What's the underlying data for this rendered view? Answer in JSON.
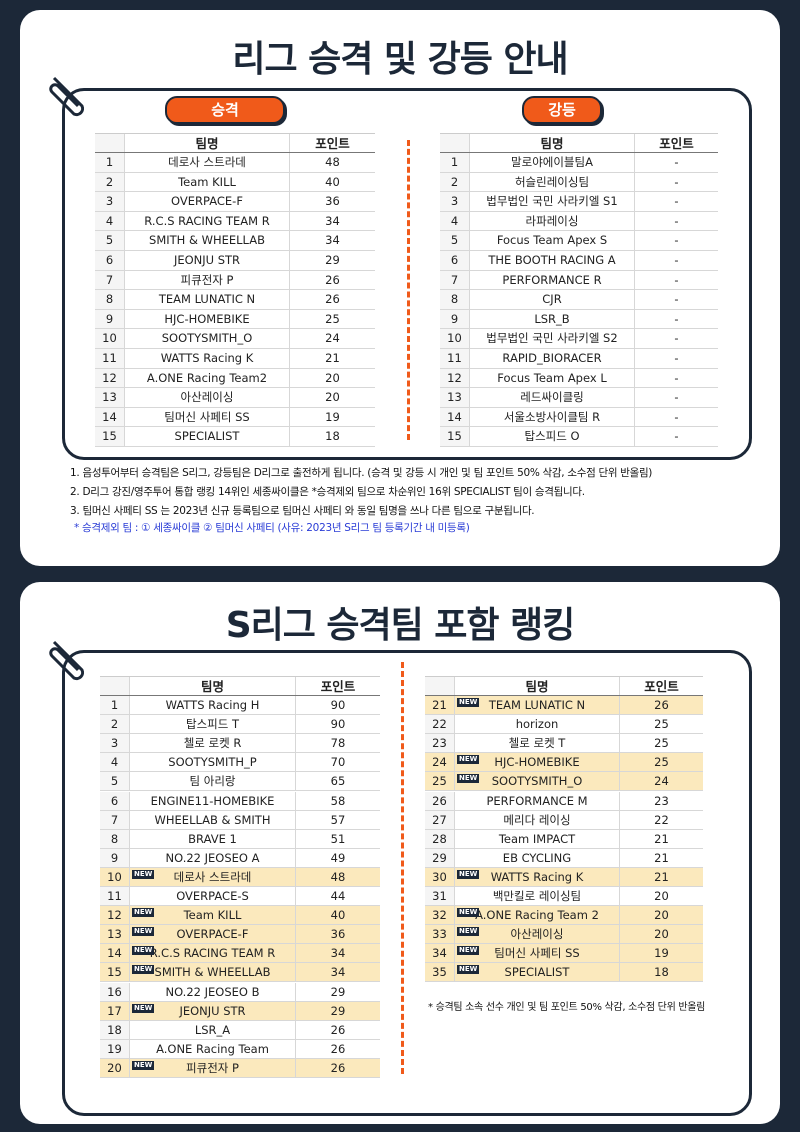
{
  "section1": {
    "title": "리그 승격 및 강등 안내",
    "promotion": {
      "label": "승격",
      "headers": [
        "팀명",
        "포인트"
      ],
      "rows": [
        {
          "rank": 1,
          "team": "데로사 스트라데",
          "points": 48
        },
        {
          "rank": 2,
          "team": "Team KILL",
          "points": 40
        },
        {
          "rank": 3,
          "team": "OVERPACE-F",
          "points": 36
        },
        {
          "rank": 4,
          "team": "R.C.S RACING TEAM R",
          "points": 34
        },
        {
          "rank": 5,
          "team": "SMITH & WHEELLAB",
          "points": 34
        },
        {
          "rank": 6,
          "team": "JEONJU STR",
          "points": 29
        },
        {
          "rank": 7,
          "team": "피큐전자 P",
          "points": 26
        },
        {
          "rank": 8,
          "team": "TEAM LUNATIC N",
          "points": 26
        },
        {
          "rank": 9,
          "team": "HJC-HOMEBIKE",
          "points": 25
        },
        {
          "rank": 10,
          "team": "SOOTYSMITH_O",
          "points": 24
        },
        {
          "rank": 11,
          "team": "WATTS Racing K",
          "points": 21
        },
        {
          "rank": 12,
          "team": "A.ONE Racing Team2",
          "points": 20
        },
        {
          "rank": 13,
          "team": "아산레이싱",
          "points": 20
        },
        {
          "rank": 14,
          "team": "팀머신 사페티 SS",
          "points": 19
        },
        {
          "rank": 15,
          "team": "SPECIALIST",
          "points": 18
        }
      ]
    },
    "relegation": {
      "label": "강등",
      "headers": [
        "팀명",
        "포인트"
      ],
      "rows": [
        {
          "rank": 1,
          "team": "말로야에이블팀A",
          "points": "-"
        },
        {
          "rank": 2,
          "team": "허슬린레이싱팀",
          "points": "-"
        },
        {
          "rank": 3,
          "team": "법무법인 국민 사라키엘 S1",
          "points": "-"
        },
        {
          "rank": 4,
          "team": "라파레이싱",
          "points": "-"
        },
        {
          "rank": 5,
          "team": "Focus Team Apex S",
          "points": "-"
        },
        {
          "rank": 6,
          "team": "THE BOOTH RACING A",
          "points": "-"
        },
        {
          "rank": 7,
          "team": "PERFORMANCE R",
          "points": "-"
        },
        {
          "rank": 8,
          "team": "CJR",
          "points": "-"
        },
        {
          "rank": 9,
          "team": "LSR_B",
          "points": "-"
        },
        {
          "rank": 10,
          "team": "법무법인 국민 사라키엘 S2",
          "points": "-"
        },
        {
          "rank": 11,
          "team": "RAPID_BIORACER",
          "points": "-"
        },
        {
          "rank": 12,
          "team": "Focus Team Apex L",
          "points": "-"
        },
        {
          "rank": 13,
          "team": "레드싸이클링",
          "points": "-"
        },
        {
          "rank": 14,
          "team": "서울소방사이클팀 R",
          "points": "-"
        },
        {
          "rank": 15,
          "team": "탑스피드 O",
          "points": "-"
        }
      ]
    },
    "notes": [
      "1. 음성투어부터 승격팀은 S리그, 강등팀은 D리그로 출전하게 됩니다. (승격 및 강등 시 개인 및 팀 포인트 50% 삭감, 소수점 단위 반올림)",
      "2. D리그 강진/영주투어 통합 랭킹 14위인 세종싸이클은 *승격제외 팀으로 차순위인 16위 SPECIALIST 팀이 승격됩니다.",
      "3. 팀머신 사페티 SS 는 2023년 신규 등록팀으로 팀머신 사페티 와 동일 팀명을 쓰나 다른 팀으로 구분됩니다."
    ],
    "exclusion_note": "* 승격제외 팀 : ① 세종싸이클 ② 팀머신 사페티 (사유: 2023년 S리그 팀 등록기간 내 미등록)"
  },
  "section2": {
    "title": "S리그 승격팀 포함 랭킹",
    "new_badge": "NEW",
    "left": {
      "headers": [
        "팀명",
        "포인트"
      ],
      "rows": [
        {
          "rank": 1,
          "team": "WATTS Racing H",
          "points": 90
        },
        {
          "rank": 2,
          "team": "탑스피드 T",
          "points": 90
        },
        {
          "rank": 3,
          "team": "첼로 로켓 R",
          "points": 78
        },
        {
          "rank": 4,
          "team": "SOOTYSMITH_P",
          "points": 70
        },
        {
          "rank": 5,
          "team": "팀 아리랑",
          "points": 65
        },
        {
          "rank": 6,
          "team": "ENGINE11-HOMEBIKE",
          "points": 58
        },
        {
          "rank": 7,
          "team": "WHEELLAB & SMITH",
          "points": 57
        },
        {
          "rank": 8,
          "team": "BRAVE 1",
          "points": 51
        },
        {
          "rank": 9,
          "team": "NO.22 JEOSEO A",
          "points": 49
        },
        {
          "rank": 10,
          "team": "데로사 스트라데",
          "points": 48,
          "new": true
        },
        {
          "rank": 11,
          "team": "OVERPACE-S",
          "points": 44
        },
        {
          "rank": 12,
          "team": "Team KILL",
          "points": 40,
          "new": true
        },
        {
          "rank": 13,
          "team": "OVERPACE-F",
          "points": 36,
          "new": true
        },
        {
          "rank": 14,
          "team": "R.C.S RACING TEAM R",
          "points": 34,
          "new": true
        },
        {
          "rank": 15,
          "team": "SMITH & WHEELLAB",
          "points": 34,
          "new": true
        },
        {
          "rank": 16,
          "team": "NO.22 JEOSEO B",
          "points": 29
        },
        {
          "rank": 17,
          "team": "JEONJU STR",
          "points": 29,
          "new": true
        },
        {
          "rank": 18,
          "team": "LSR_A",
          "points": 26
        },
        {
          "rank": 19,
          "team": "A.ONE Racing Team",
          "points": 26
        },
        {
          "rank": 20,
          "team": "피큐전자 P",
          "points": 26,
          "new": true
        }
      ]
    },
    "right": {
      "headers": [
        "팀명",
        "포인트"
      ],
      "rows": [
        {
          "rank": 21,
          "team": "TEAM LUNATIC N",
          "points": 26,
          "new": true
        },
        {
          "rank": 22,
          "team": "horizon",
          "points": 25
        },
        {
          "rank": 23,
          "team": "첼로 로켓 T",
          "points": 25
        },
        {
          "rank": 24,
          "team": "HJC-HOMEBIKE",
          "points": 25,
          "new": true
        },
        {
          "rank": 25,
          "team": "SOOTYSMITH_O",
          "points": 24,
          "new": true
        },
        {
          "rank": 26,
          "team": "PERFORMANCE M",
          "points": 23
        },
        {
          "rank": 27,
          "team": "메리다 레이싱",
          "points": 22
        },
        {
          "rank": 28,
          "team": "Team IMPACT",
          "points": 21
        },
        {
          "rank": 29,
          "team": "EB CYCLING",
          "points": 21
        },
        {
          "rank": 30,
          "team": "WATTS Racing K",
          "points": 21,
          "new": true
        },
        {
          "rank": 31,
          "team": "백만킬로 레이싱팀",
          "points": 20
        },
        {
          "rank": 32,
          "team": "A.ONE Racing Team 2",
          "points": 20,
          "new": true
        },
        {
          "rank": 33,
          "team": "아산레이싱",
          "points": 20,
          "new": true
        },
        {
          "rank": 34,
          "team": "팀머신 사페티 SS",
          "points": 19,
          "new": true
        },
        {
          "rank": 35,
          "team": "SPECIALIST",
          "points": 18,
          "new": true
        }
      ]
    },
    "footnote": "* 승격팀 소속 선수 개인 및 팀 포인트 50% 삭감, 소수점 단위 반올림"
  }
}
